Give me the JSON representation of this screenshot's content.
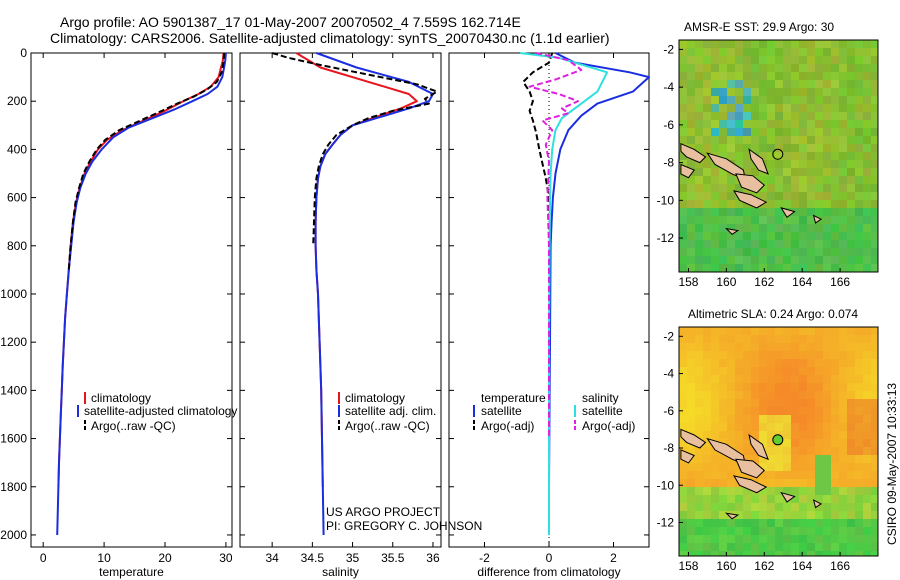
{
  "header": {
    "title_line1": "Argo profile: AO 5901387_17 01-May-2007 20070502_4 7.559S 162.714E",
    "title_line2": "Climatology: CARS2006. Satellite-adjusted climatology: synTS_20070430.nc (1.1d earlier)"
  },
  "side_stamp": "CSIRO 09-May-2007 10:33:13",
  "colors": {
    "climatology": "#e8141e",
    "satellite": "#1a2ee0",
    "argo": "#000000",
    "sat_salinity": "#2ee0e0",
    "argo_adj_salinity": "#e020e0",
    "axis": "#000000"
  },
  "chart_data": [
    {
      "type": "line",
      "name": "temperature-profile",
      "xlabel": "temperature",
      "ylabel": "",
      "xlim": [
        -2,
        31
      ],
      "ylim": [
        2050,
        0
      ],
      "xticks": [
        0,
        10,
        20,
        30
      ],
      "yticks": [
        0,
        200,
        400,
        600,
        800,
        1000,
        1200,
        1400,
        1600,
        1800,
        2000
      ],
      "legend": {
        "placement": "lower-right",
        "entries": [
          "climatology",
          "satellite-adjusted climatology",
          "Argo(..raw -QC)"
        ]
      },
      "series": [
        {
          "name": "climatology",
          "color": "#e8141e",
          "style": "solid",
          "points": [
            [
              29.6,
              0
            ],
            [
              29.5,
              30
            ],
            [
              29.2,
              60
            ],
            [
              28.8,
              100
            ],
            [
              27.5,
              140
            ],
            [
              25.5,
              170
            ],
            [
              23,
              200
            ],
            [
              20,
              240
            ],
            [
              16.5,
              280
            ],
            [
              13,
              320
            ],
            [
              10.5,
              360
            ],
            [
              9,
              400
            ],
            [
              7.8,
              450
            ],
            [
              6.8,
              500
            ],
            [
              6,
              560
            ],
            [
              5.4,
              620
            ],
            [
              4.9,
              700
            ],
            [
              4.5,
              800
            ],
            [
              4.2,
              900
            ],
            [
              3.9,
              1000
            ],
            [
              3.6,
              1100
            ],
            [
              3.4,
              1200
            ],
            [
              3.2,
              1300
            ],
            [
              3.05,
              1400
            ],
            [
              2.9,
              1500
            ],
            [
              2.75,
              1600
            ],
            [
              2.6,
              1700
            ],
            [
              2.5,
              1800
            ]
          ]
        },
        {
          "name": "satellite-adjusted climatology",
          "color": "#1a2ee0",
          "style": "solid",
          "points": [
            [
              30,
              0
            ],
            [
              29.9,
              30
            ],
            [
              29.7,
              60
            ],
            [
              29.4,
              100
            ],
            [
              28.6,
              140
            ],
            [
              27,
              170
            ],
            [
              24.5,
              200
            ],
            [
              21.5,
              235
            ],
            [
              18,
              270
            ],
            [
              14,
              310
            ],
            [
              11.5,
              350
            ],
            [
              9.6,
              400
            ],
            [
              8.1,
              450
            ],
            [
              7,
              500
            ],
            [
              6.1,
              560
            ],
            [
              5.5,
              620
            ],
            [
              5,
              700
            ],
            [
              4.6,
              800
            ],
            [
              4.2,
              900
            ],
            [
              3.9,
              1000
            ],
            [
              3.6,
              1100
            ],
            [
              3.4,
              1200
            ],
            [
              3.2,
              1300
            ],
            [
              3.05,
              1400
            ],
            [
              2.9,
              1500
            ],
            [
              2.75,
              1600
            ],
            [
              2.6,
              1700
            ],
            [
              2.5,
              1800
            ],
            [
              2.4,
              1900
            ],
            [
              2.3,
              2000
            ]
          ]
        },
        {
          "name": "Argo(..raw -QC)",
          "color": "#000000",
          "style": "dashed",
          "points": [
            [
              29.7,
              0
            ],
            [
              29.6,
              40
            ],
            [
              29.3,
              80
            ],
            [
              28.5,
              120
            ],
            [
              27,
              150
            ],
            [
              24.8,
              180
            ],
            [
              22,
              210
            ],
            [
              19.5,
              240
            ],
            [
              16,
              280
            ],
            [
              12.5,
              320
            ],
            [
              10.2,
              360
            ],
            [
              8.8,
              400
            ],
            [
              7.6,
              450
            ],
            [
              6.6,
              500
            ],
            [
              5.9,
              560
            ],
            [
              5.3,
              620
            ],
            [
              4.9,
              700
            ],
            [
              4.5,
              800
            ],
            [
              4.2,
              900
            ]
          ]
        }
      ]
    },
    {
      "type": "line",
      "name": "salinity-profile",
      "xlabel": "salinity",
      "ylabel": "",
      "xlim": [
        33.6,
        36.1
      ],
      "ylim": [
        2050,
        0
      ],
      "xticks": [
        34,
        34.5,
        35,
        35.5,
        36
      ],
      "xtick_labels": [
        "34",
        "34.5",
        "35",
        "35.5",
        "36"
      ],
      "legend": {
        "placement": "lower-right",
        "entries": [
          "climatology",
          "satellite adj. clim.",
          "Argo(..raw -QC)"
        ]
      },
      "annotation": [
        "US ARGO PROJECT",
        "PI: GREGORY C. JOHNSON"
      ],
      "series": [
        {
          "name": "climatology",
          "color": "#e8141e",
          "style": "solid",
          "points": [
            [
              34.3,
              0
            ],
            [
              34.6,
              60
            ],
            [
              35.2,
              120
            ],
            [
              35.7,
              170
            ],
            [
              35.8,
              200
            ],
            [
              35.6,
              230
            ],
            [
              35.25,
              270
            ],
            [
              35.0,
              300
            ],
            [
              34.85,
              340
            ],
            [
              34.75,
              380
            ],
            [
              34.66,
              420
            ],
            [
              34.6,
              470
            ],
            [
              34.57,
              520
            ],
            [
              34.55,
              600
            ],
            [
              34.54,
              700
            ],
            [
              34.54,
              800
            ],
            [
              34.55,
              900
            ],
            [
              34.57,
              1000
            ],
            [
              34.59,
              1200
            ],
            [
              34.61,
              1400
            ],
            [
              34.62,
              1600
            ],
            [
              34.63,
              1800
            ]
          ]
        },
        {
          "name": "satellite adj. clim.",
          "color": "#1a2ee0",
          "style": "solid",
          "points": [
            [
              34.55,
              0
            ],
            [
              35.05,
              60
            ],
            [
              35.7,
              120
            ],
            [
              36.0,
              170
            ],
            [
              35.95,
              200
            ],
            [
              35.7,
              230
            ],
            [
              35.3,
              270
            ],
            [
              35.0,
              300
            ],
            [
              34.85,
              340
            ],
            [
              34.75,
              380
            ],
            [
              34.66,
              420
            ],
            [
              34.6,
              470
            ],
            [
              34.57,
              520
            ],
            [
              34.55,
              600
            ],
            [
              34.54,
              700
            ],
            [
              34.54,
              800
            ],
            [
              34.55,
              900
            ],
            [
              34.57,
              1000
            ],
            [
              34.59,
              1200
            ],
            [
              34.61,
              1400
            ],
            [
              34.62,
              1600
            ],
            [
              34.63,
              1800
            ],
            [
              34.64,
              2000
            ]
          ]
        },
        {
          "name": "Argo(..raw -QC)",
          "color": "#000000",
          "style": "dashed",
          "points": [
            [
              34.0,
              0
            ],
            [
              34.2,
              20
            ],
            [
              34.6,
              50
            ],
            [
              35.2,
              90
            ],
            [
              35.8,
              130
            ],
            [
              36.05,
              160
            ],
            [
              35.9,
              190
            ],
            [
              35.95,
              210
            ],
            [
              35.5,
              240
            ],
            [
              35.2,
              270
            ],
            [
              35.0,
              300
            ],
            [
              34.8,
              340
            ],
            [
              34.7,
              380
            ],
            [
              34.63,
              420
            ],
            [
              34.58,
              470
            ],
            [
              34.55,
              520
            ],
            [
              34.53,
              600
            ],
            [
              34.52,
              700
            ],
            [
              34.51,
              800
            ]
          ]
        }
      ]
    },
    {
      "type": "line",
      "name": "difference-profile",
      "xlabel": "difference from climatology",
      "ylabel": "",
      "xlim": [
        -3.1,
        3.1
      ],
      "ylim": [
        2050,
        0
      ],
      "xticks": [
        -2,
        0,
        2
      ],
      "legend": {
        "placement": "lower-center",
        "headers": [
          "temperature",
          "salinity"
        ],
        "entries": [
          "satellite",
          "Argo(-adj)",
          "satellite",
          "Argo(-adj)"
        ]
      },
      "series": [
        {
          "name": "temperature satellite",
          "color": "#1a2ee0",
          "style": "solid",
          "points": [
            [
              0.2,
              0
            ],
            [
              0.8,
              40
            ],
            [
              2.5,
              80
            ],
            [
              3.1,
              100
            ],
            [
              2.6,
              160
            ],
            [
              1.5,
              210
            ],
            [
              1.0,
              260
            ],
            [
              0.6,
              320
            ],
            [
              0.35,
              400
            ],
            [
              0.2,
              500
            ],
            [
              0.12,
              600
            ],
            [
              0.08,
              700
            ],
            [
              0.05,
              800
            ],
            [
              0.04,
              1000
            ],
            [
              0.03,
              1200
            ],
            [
              0.02,
              1400
            ],
            [
              0.01,
              1600
            ],
            [
              0.0,
              1800
            ],
            [
              0.0,
              2000
            ]
          ]
        },
        {
          "name": "temperature Argo(-adj)",
          "color": "#000000",
          "style": "dashed",
          "points": [
            [
              0.1,
              0
            ],
            [
              0.0,
              40
            ],
            [
              -0.5,
              80
            ],
            [
              -0.8,
              120
            ],
            [
              -0.6,
              160
            ],
            [
              -0.5,
              200
            ],
            [
              -0.6,
              240
            ],
            [
              -0.5,
              280
            ],
            [
              -0.4,
              330
            ],
            [
              -0.3,
              400
            ],
            [
              -0.2,
              460
            ],
            [
              -0.1,
              520
            ],
            [
              0.0,
              600
            ],
            [
              0.0,
              700
            ],
            [
              0.0,
              800
            ],
            [
              0.0,
              900
            ]
          ]
        },
        {
          "name": "salinity satellite",
          "color": "#2ee0e0",
          "style": "solid",
          "points": [
            [
              -0.9,
              0
            ],
            [
              0.3,
              20
            ],
            [
              1.8,
              80
            ],
            [
              1.5,
              160
            ],
            [
              1.2,
              190
            ],
            [
              0.8,
              230
            ],
            [
              0.4,
              270
            ],
            [
              0.2,
              320
            ],
            [
              0.1,
              400
            ],
            [
              0.05,
              500
            ],
            [
              0.03,
              600
            ],
            [
              0.02,
              800
            ],
            [
              0.01,
              1000
            ],
            [
              0.0,
              1200
            ],
            [
              0.0,
              1600
            ],
            [
              0.0,
              2000
            ]
          ]
        },
        {
          "name": "salinity Argo(-adj)",
          "color": "#e020e0",
          "style": "dashed",
          "points": [
            [
              -0.4,
              0
            ],
            [
              0.6,
              30
            ],
            [
              1.0,
              70
            ],
            [
              0.2,
              110
            ],
            [
              -0.6,
              140
            ],
            [
              0.3,
              170
            ],
            [
              0.9,
              200
            ],
            [
              0.4,
              230
            ],
            [
              0.6,
              250
            ],
            [
              -0.2,
              280
            ],
            [
              0.1,
              320
            ],
            [
              -0.1,
              380
            ],
            [
              0.0,
              450
            ],
            [
              -0.05,
              600
            ],
            [
              0.0,
              800
            ],
            [
              0.0,
              1000
            ],
            [
              0.0,
              1300
            ],
            [
              0.0,
              1600
            ]
          ]
        }
      ]
    },
    {
      "type": "heatmap",
      "name": "sst-map",
      "title": "AMSR-E SST: 29.9 Argo: 30",
      "xlim": [
        157.5,
        168
      ],
      "ylim": [
        -13.8,
        -1.5
      ],
      "xticks": [
        158,
        160,
        162,
        164,
        166
      ],
      "yticks": [
        -2,
        -4,
        -6,
        -8,
        -10,
        -12
      ],
      "argo_position": [
        162.714,
        -7.559
      ],
      "marker_fill": "none"
    },
    {
      "type": "heatmap",
      "name": "sla-map",
      "title": "Altimetric SLA: 0.24 Argo: 0.074",
      "xlim": [
        157.5,
        168
      ],
      "ylim": [
        -13.8,
        -1.5
      ],
      "xticks": [
        158,
        160,
        162,
        164,
        166
      ],
      "yticks": [
        -2,
        -4,
        -6,
        -8,
        -10,
        -12
      ],
      "argo_position": [
        162.714,
        -7.559
      ],
      "marker_fill": "#66cc33"
    }
  ]
}
